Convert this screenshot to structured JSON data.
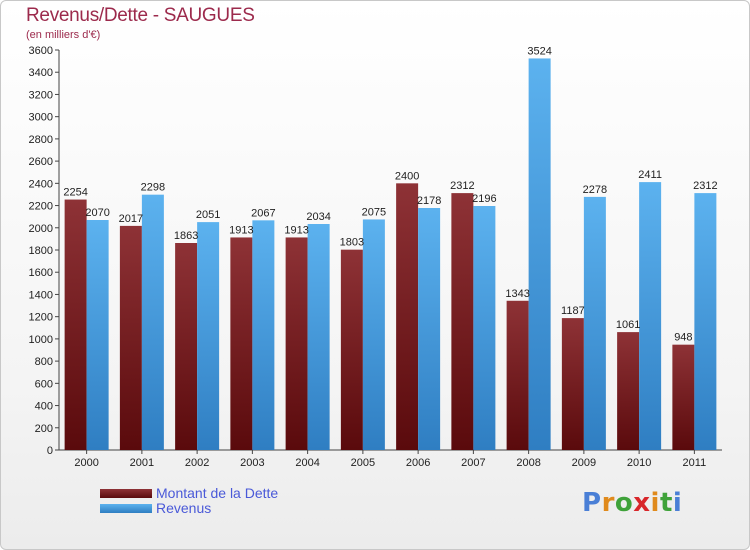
{
  "header": {
    "title": "Revenus/Dette - SAUGUES",
    "subtitle": "(en milliers d'€)"
  },
  "chart_data": {
    "type": "bar",
    "categories": [
      "2000",
      "2001",
      "2002",
      "2003",
      "2004",
      "2005",
      "2006",
      "2007",
      "2008",
      "2009",
      "2010",
      "2011"
    ],
    "series": [
      {
        "name": "Montant de la Dette",
        "color": "#6b1416",
        "values": [
          2254,
          2017,
          1863,
          1913,
          1913,
          1803,
          2400,
          2312,
          1343,
          1187,
          1061,
          948
        ]
      },
      {
        "name": "Revenus",
        "color": "#4a9fe0",
        "values": [
          2070,
          2298,
          2051,
          2067,
          2034,
          2075,
          2178,
          2196,
          3524,
          2278,
          2411,
          2312
        ]
      }
    ],
    "ylim": [
      0,
      3600
    ],
    "yticks": [
      0,
      200,
      400,
      600,
      800,
      1000,
      1200,
      1400,
      1600,
      1800,
      2000,
      2200,
      2400,
      2600,
      2800,
      3000,
      3200,
      3400,
      3600
    ],
    "grid": false,
    "legend_position": "bottom-left"
  },
  "legend": {
    "items": [
      {
        "label": "Montant de la Dette",
        "color": "#6b1416"
      },
      {
        "label": "Revenus",
        "color": "#4a9fe0"
      }
    ]
  },
  "logo": {
    "letters": [
      "P",
      "r",
      "o",
      "x",
      "i",
      "t",
      "i"
    ],
    "colors": [
      "#4a7fd6",
      "#e08a1c",
      "#3fa23a",
      "#d8262a",
      "#e08a1c",
      "#3fa23a",
      "#4a7fd6"
    ]
  }
}
